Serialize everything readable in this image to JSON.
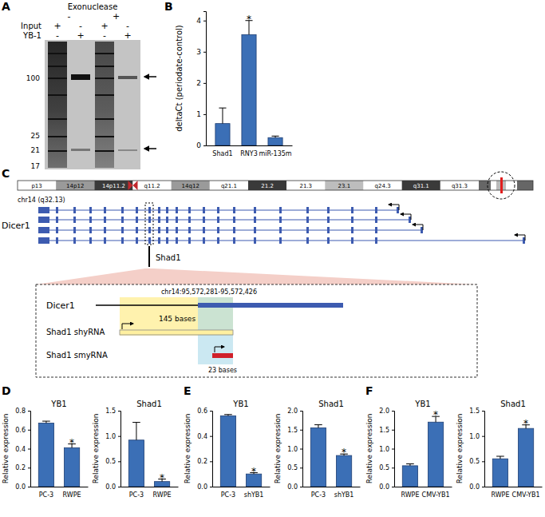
{
  "panel_letters": [
    "A",
    "B",
    "C",
    "D",
    "E",
    "F"
  ],
  "gel": {
    "header": "Exonuclease",
    "groups": [
      "-",
      "+"
    ],
    "rows": [
      {
        "label": "Input",
        "values": [
          "+",
          "-",
          "+",
          "-"
        ]
      },
      {
        "label": "YB-1",
        "values": [
          "-",
          "+",
          "-",
          "+"
        ]
      }
    ],
    "markers": [
      100,
      25,
      21,
      17
    ]
  },
  "chart_data": [
    {
      "type": "bar",
      "categories": [
        "Shad1",
        "RNY3",
        "miR-135m"
      ],
      "values": [
        0.7,
        3.55,
        0.25
      ],
      "errors": [
        0.5,
        0.45,
        0.05
      ],
      "color": "#3b6fb6",
      "y_label": "deltaCt (periodate-control)",
      "ylim": [
        0,
        4.3
      ],
      "yticks": [
        0,
        1,
        2,
        3,
        4
      ],
      "annotations": [
        {
          "x": "RNY3",
          "text": "*"
        }
      ]
    },
    {
      "type": "bar",
      "title": "YB1",
      "categories": [
        "PC-3",
        "RWPE"
      ],
      "values": [
        0.67,
        0.41
      ],
      "errors": [
        0.02,
        0.04
      ],
      "color": "#3b6fb6",
      "y_label": "Relative expression",
      "ylim": [
        0,
        0.8
      ],
      "yticks": [
        {
          "value": 0,
          "label": "0.0"
        },
        0.2,
        0.4,
        0.6,
        0.8
      ],
      "annotations": [
        {
          "x": "RWPE",
          "text": "*"
        }
      ]
    },
    {
      "type": "bar",
      "title": "Shad1",
      "categories": [
        "PC-3",
        "RWPE"
      ],
      "values": [
        0.92,
        0.1
      ],
      "errors": [
        0.35,
        0.05
      ],
      "color": "#3b6fb6",
      "y_label": "Relative expression",
      "ylim": [
        0,
        1.5
      ],
      "yticks": [
        {
          "value": 0,
          "label": "0.0"
        },
        0.5,
        {
          "value": 1,
          "label": "1.0"
        },
        1.5
      ],
      "annotations": [
        {
          "x": "RWPE",
          "text": "*"
        }
      ]
    },
    {
      "type": "bar",
      "title": "YB1",
      "categories": [
        "PC-3",
        "shYB1"
      ],
      "values": [
        0.56,
        0.1
      ],
      "errors": [
        0.01,
        0.01
      ],
      "color": "#3b6fb6",
      "y_label": "Relative expression",
      "ylim": [
        0,
        0.6
      ],
      "yticks": [
        {
          "value": 0,
          "label": "0.0"
        },
        0.2,
        0.4,
        0.6
      ],
      "annotations": [
        {
          "x": "shYB1",
          "text": "*"
        }
      ]
    },
    {
      "type": "bar",
      "title": "Shad1",
      "categories": [
        "PC-3",
        "shYB1"
      ],
      "values": [
        1.55,
        0.82
      ],
      "errors": [
        0.08,
        0.04
      ],
      "color": "#3b6fb6",
      "y_label": "Relative expression",
      "ylim": [
        0,
        2
      ],
      "yticks": [
        {
          "value": 0,
          "label": "0.0"
        },
        0.5,
        {
          "value": 1,
          "label": "1.0"
        },
        1.5,
        {
          "value": 2,
          "label": "2.0"
        }
      ],
      "annotations": [
        {
          "x": "shYB1",
          "text": "*"
        }
      ]
    },
    {
      "type": "bar",
      "title": "YB1",
      "categories": [
        "RWPE",
        "CMV-YB1"
      ],
      "values": [
        0.55,
        1.7
      ],
      "errors": [
        0.05,
        0.15
      ],
      "color": "#3b6fb6",
      "y_label": "Relative expression",
      "ylim": [
        0,
        2
      ],
      "yticks": [
        {
          "value": 0,
          "label": "0.0"
        },
        0.5,
        {
          "value": 1,
          "label": "1.0"
        },
        1.5,
        {
          "value": 2,
          "label": "2.0"
        }
      ],
      "annotations": [
        {
          "x": "CMV-YB1",
          "text": "*"
        }
      ]
    },
    {
      "type": "bar",
      "title": "Shad1",
      "categories": [
        "RWPE",
        "CMV-YB1"
      ],
      "values": [
        0.55,
        1.15
      ],
      "errors": [
        0.05,
        0.07
      ],
      "color": "#3b6fb6",
      "y_label": "Relative expression",
      "ylim": [
        0,
        1.5
      ],
      "yticks": [
        {
          "value": 0,
          "label": "0.0"
        },
        0.5,
        {
          "value": 1,
          "label": "1.0"
        },
        1.5
      ],
      "annotations": [
        {
          "x": "CMV-YB1",
          "text": "*"
        }
      ]
    }
  ],
  "diagram": {
    "bands": [
      "p13",
      "14p12",
      "14p11.2",
      "q11.2",
      "14q12",
      "q21.1",
      "21.2",
      "21.3",
      "23.1",
      "q24.3",
      "q31.1",
      "q31.3"
    ],
    "locus": "chr14 (q32.13)",
    "gene": "Dicer1",
    "feature": "Shad1",
    "region": "chr14:95,572,281-95,572,426",
    "zoom_gene": "Dicer1",
    "shyrna": "Shad1 shyRNA",
    "shyrna_length": "145 bases",
    "smyrna": "Shad1 smyRNA",
    "smyrna_length": "23 bases"
  }
}
